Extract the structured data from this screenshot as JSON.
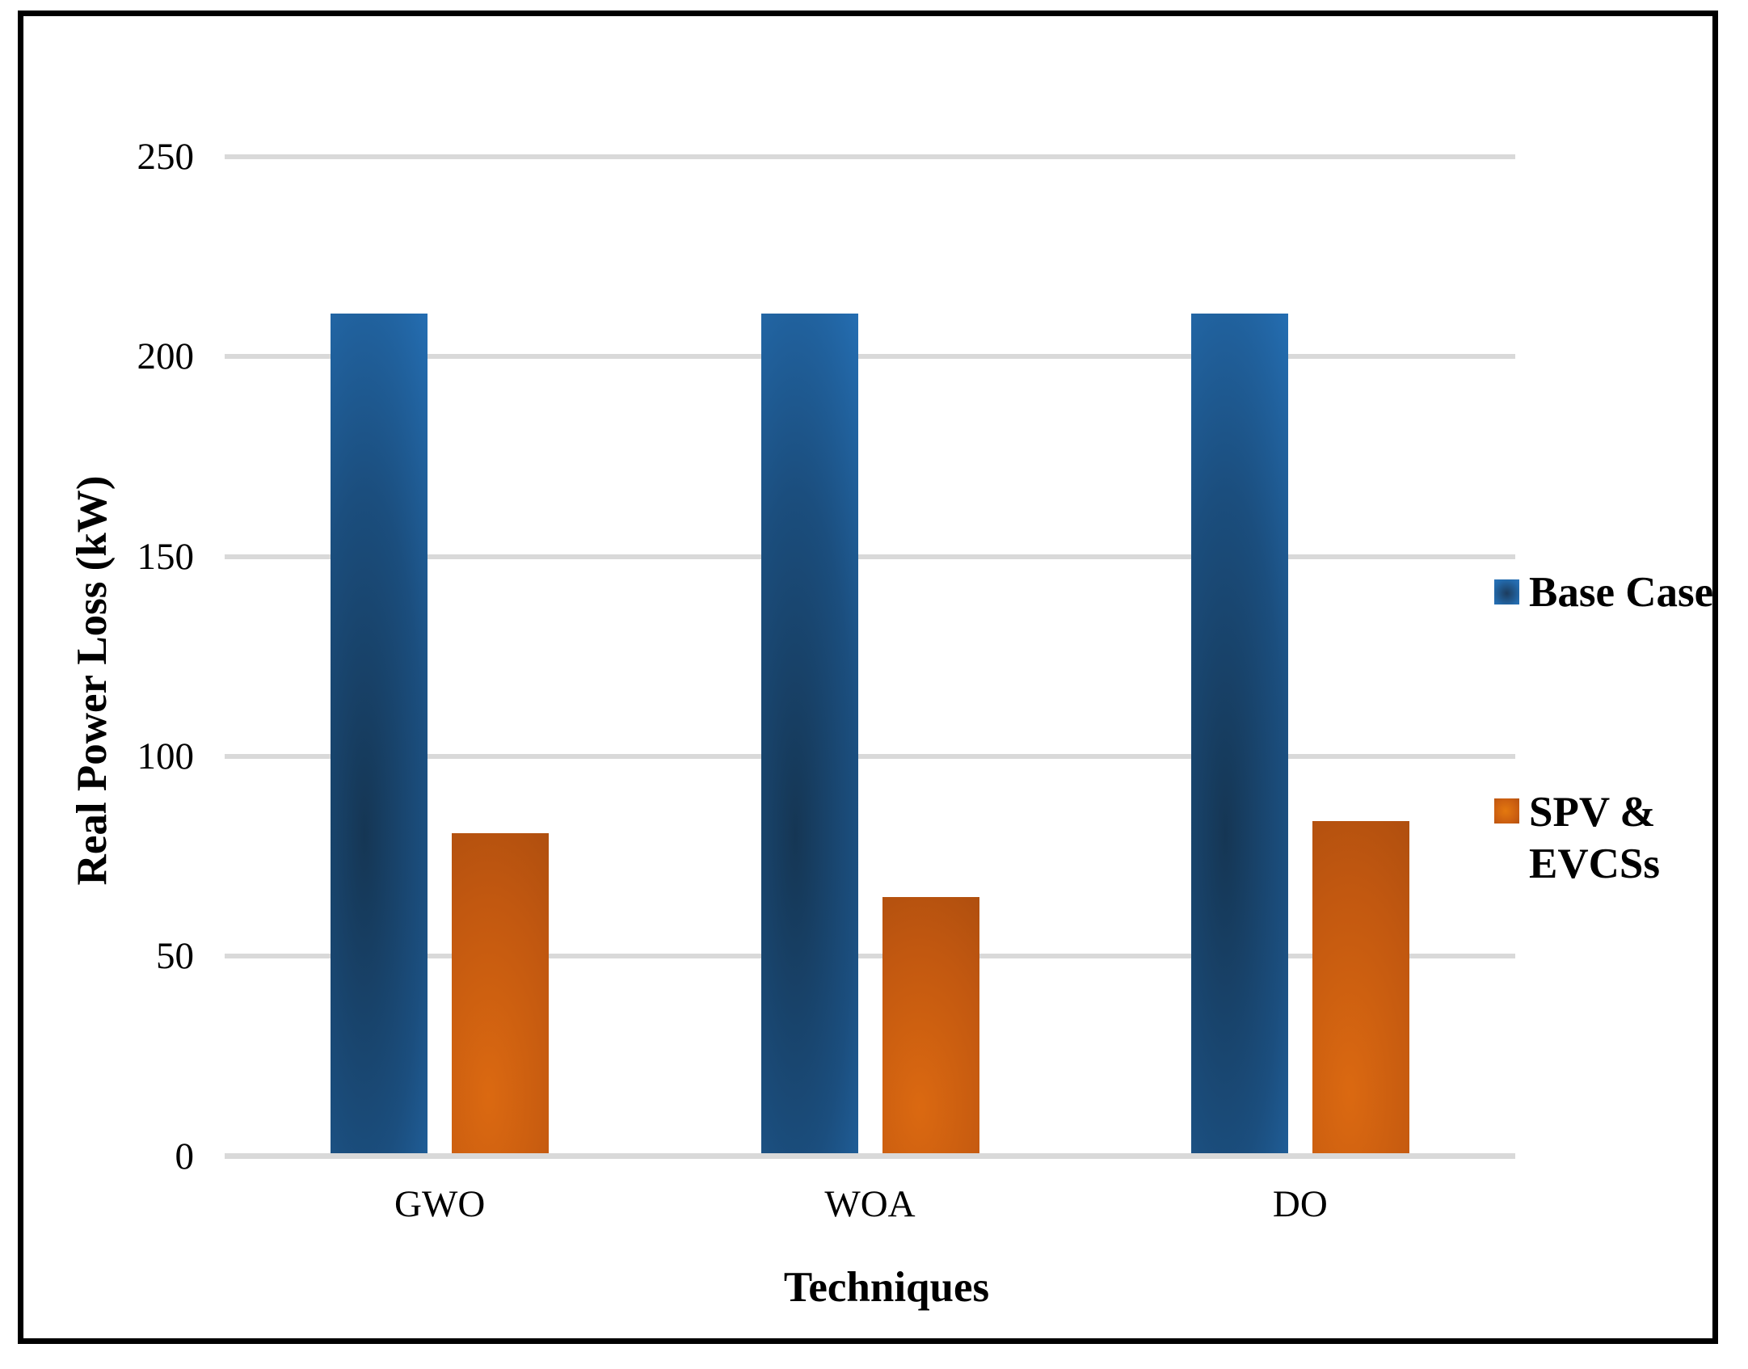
{
  "figure": {
    "background": "#ffffff",
    "border_color": "#000000"
  },
  "chart_data": {
    "type": "bar",
    "title": "",
    "xlabel": "Techniques",
    "ylabel": "Real Power Loss (kW)",
    "categories": [
      "GWO",
      "WOA",
      "DO"
    ],
    "series": [
      {
        "name": "Base Case",
        "values": [
          210,
          210,
          210
        ],
        "colors": {
          "light": "#2777c1",
          "mid": "#1b4e7e",
          "deep": "#153654"
        }
      },
      {
        "name": "SPV & EVCSs",
        "values": [
          80,
          64,
          83
        ],
        "colors": {
          "light": "#db6911",
          "mid": "#c25810",
          "deep": "#a84b0e"
        }
      }
    ],
    "ylim": [
      0,
      250
    ],
    "ytick_interval": 50,
    "yticks": [
      "0",
      "50",
      "100",
      "150",
      "200",
      "250"
    ],
    "grid": "horizontal",
    "gridline_color": "#d9d9d9",
    "axis_line_color": "#d9d9d9",
    "legend_position": "right"
  },
  "legend": {
    "items": [
      {
        "label": "Base Case"
      },
      {
        "label": "SPV & EVCSs"
      }
    ]
  }
}
